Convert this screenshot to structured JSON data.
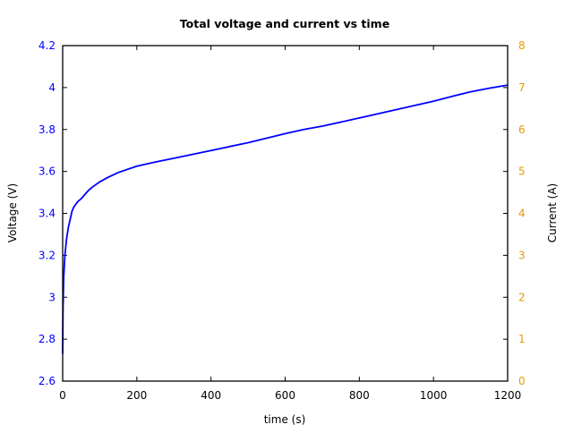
{
  "chart_data": {
    "type": "line",
    "title": "Total voltage and current vs time",
    "xlabel": "time (s)",
    "ylabel": "Voltage (V)",
    "ylabel_right": "Current (A)",
    "xlim": [
      0,
      1200
    ],
    "ylim": [
      2.6,
      4.2
    ],
    "ylim_right": [
      0,
      8
    ],
    "xticks": [
      "0",
      "200",
      "400",
      "600",
      "800",
      "1000",
      "1200"
    ],
    "yticks": [
      "2.6",
      "2.8",
      "3",
      "3.2",
      "3.4",
      "3.6",
      "3.8",
      "4",
      "4.2"
    ],
    "yticks_right": [
      "0",
      "1",
      "2",
      "3",
      "4",
      "5",
      "6",
      "7",
      "8"
    ],
    "grid": false,
    "colors": {
      "voltage": "#0000ff",
      "right_axis": "#e69a00"
    },
    "series": [
      {
        "name": "Voltage",
        "axis": "left",
        "x": [
          0,
          1,
          3,
          6,
          10,
          15,
          20,
          25,
          30,
          40,
          50,
          60,
          70,
          80,
          100,
          120,
          150,
          200,
          250,
          300,
          400,
          500,
          600,
          650,
          700,
          800,
          900,
          1000,
          1050,
          1100,
          1150,
          1200
        ],
        "values": [
          2.73,
          2.95,
          3.1,
          3.2,
          3.27,
          3.33,
          3.37,
          3.41,
          3.43,
          3.455,
          3.47,
          3.49,
          3.51,
          3.525,
          3.55,
          3.57,
          3.595,
          3.625,
          3.645,
          3.663,
          3.7,
          3.737,
          3.78,
          3.8,
          3.816,
          3.855,
          3.895,
          3.935,
          3.958,
          3.98,
          3.997,
          4.012
        ]
      }
    ]
  }
}
